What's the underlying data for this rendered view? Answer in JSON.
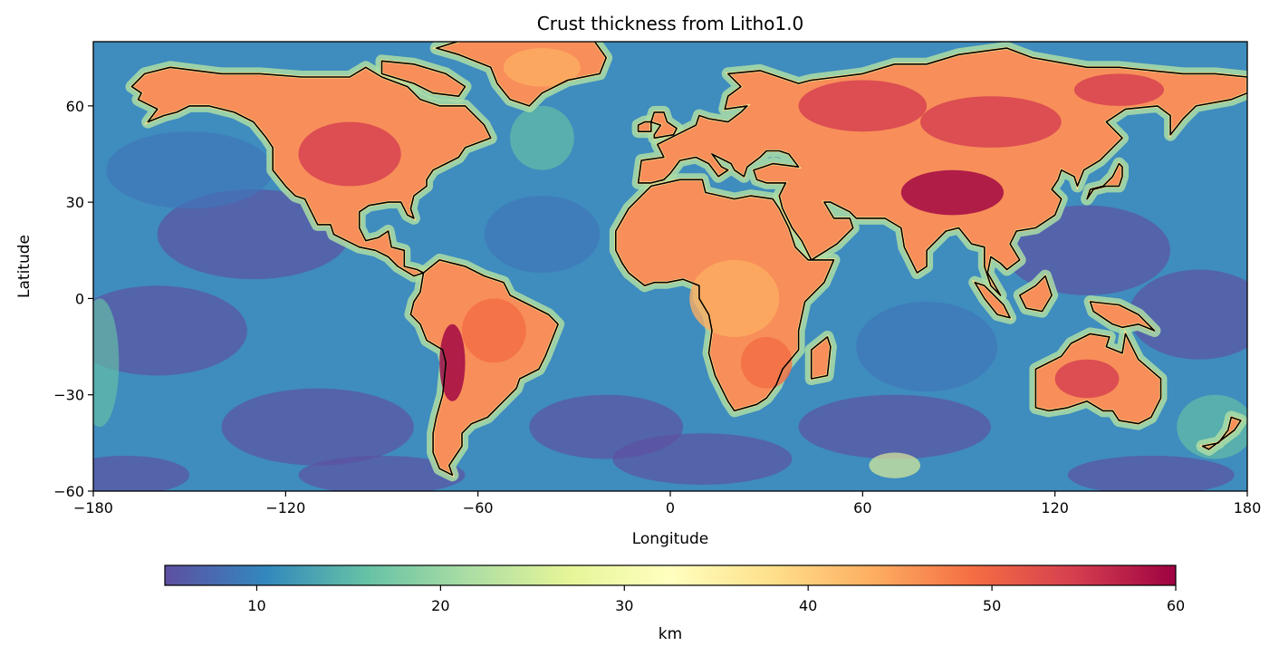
{
  "title": "Crust thickness from Litho1.0",
  "map": {
    "xlabel": "Longitude",
    "ylabel": "Latitude",
    "xlim": [
      -180,
      180
    ],
    "ylim": [
      -60,
      80
    ],
    "xticks": [
      -180,
      -120,
      -60,
      0,
      60,
      120,
      180
    ],
    "xtick_labels": [
      "−180",
      "−120",
      "−60",
      "0",
      "60",
      "120",
      "180"
    ],
    "yticks": [
      -60,
      -30,
      0,
      30,
      60
    ],
    "ytick_labels": [
      "−60",
      "−30",
      "0",
      "30",
      "60"
    ],
    "coastlines": true,
    "grid": false
  },
  "colorbar": {
    "label": "km",
    "orientation": "horizontal",
    "range": [
      5,
      60
    ],
    "ticks": [
      10,
      20,
      30,
      40,
      50,
      60
    ],
    "tick_labels": [
      "10",
      "20",
      "30",
      "40",
      "50",
      "60"
    ],
    "colormap": "Spectral_r",
    "colors": [
      "#5e4fa2",
      "#3288bd",
      "#66c2a5",
      "#abdda4",
      "#e6f598",
      "#ffffbf",
      "#fee08b",
      "#fdae61",
      "#f46d43",
      "#d53e4f",
      "#9e0142"
    ]
  }
}
